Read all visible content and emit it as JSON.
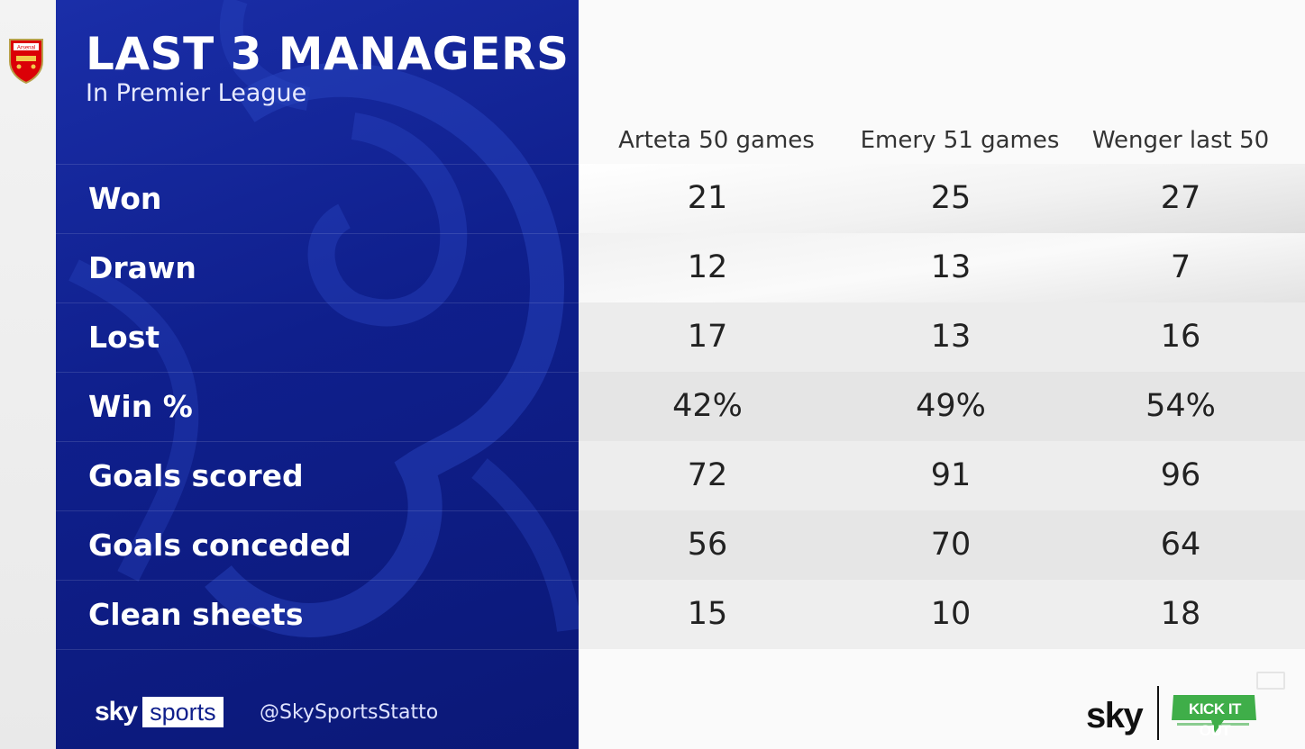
{
  "badge": {
    "text": "Arsenal"
  },
  "header": {
    "title": "LAST 3 MANAGERS",
    "subtitle": "In Premier League"
  },
  "columns": [
    "Arteta 50 games",
    "Emery 51 games",
    "Wenger last 50"
  ],
  "rows": [
    {
      "label": "Won",
      "values": [
        "21",
        "25",
        "27"
      ]
    },
    {
      "label": "Drawn",
      "values": [
        "12",
        "13",
        "7"
      ]
    },
    {
      "label": "Lost",
      "values": [
        "17",
        "13",
        "16"
      ]
    },
    {
      "label": "Win %",
      "values": [
        "42%",
        "49%",
        "54%"
      ]
    },
    {
      "label": "Goals scored",
      "values": [
        "72",
        "91",
        "96"
      ]
    },
    {
      "label": "Goals conceded",
      "values": [
        "56",
        "70",
        "64"
      ]
    },
    {
      "label": "Clean sheets",
      "values": [
        "15",
        "10",
        "18"
      ]
    }
  ],
  "footer": {
    "sky_word": "sky",
    "sports_word": "sports",
    "handle": "@SkySportsStatto",
    "brand": "sky",
    "partner": "KICK IT OUT"
  },
  "colors": {
    "panel_blue": "#0f1f8c",
    "kick_it_out_green": "#3fae49",
    "arsenal_red": "#db0007"
  },
  "icons": [
    "arsenal-crest-icon",
    "lion-watermark-icon",
    "tv-icon",
    "kick-it-out-logo-icon"
  ]
}
